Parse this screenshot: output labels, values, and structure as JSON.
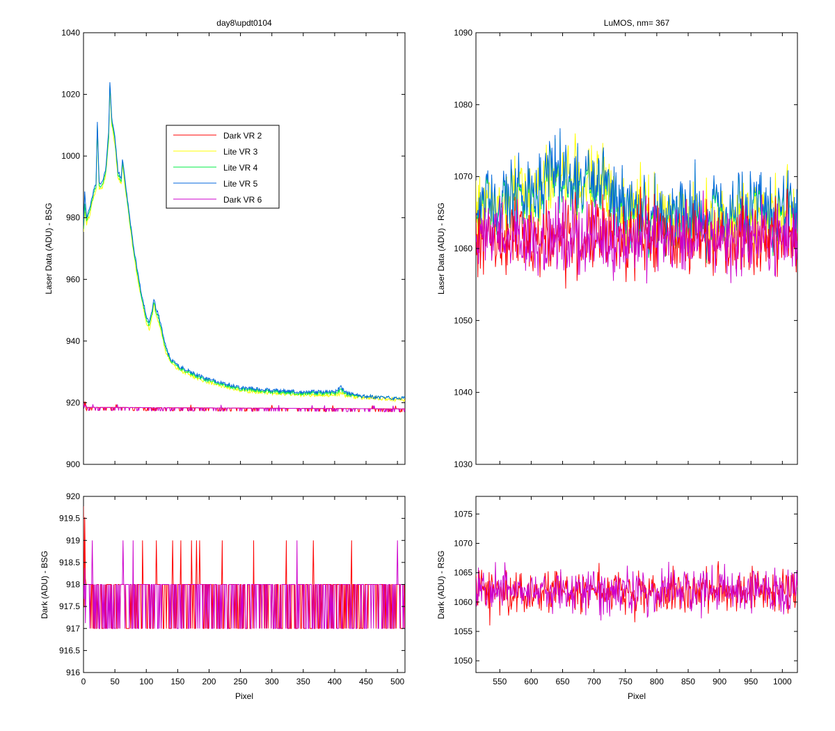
{
  "chart_data": [
    {
      "id": "top_left",
      "type": "line",
      "title": "day8\\updt0104",
      "xlabel": "",
      "ylabel": "Laser Data (ADU) - BSG",
      "xlim": [
        0,
        512
      ],
      "ylim": [
        900,
        1040
      ],
      "xticks": [
        0,
        50,
        100,
        150,
        200,
        250,
        300,
        350,
        400,
        450,
        500
      ],
      "xticklabels_shown": false,
      "yticks": [
        900,
        920,
        940,
        960,
        980,
        1000,
        1020,
        1040
      ],
      "legend": {
        "placement": "upper-middle",
        "entries": [
          "Dark VR 2",
          "Lite VR 3",
          "Lite VR 4",
          "Lite VR 5",
          "Dark VR 6"
        ]
      },
      "series": [
        {
          "name": "Dark VR 2",
          "color": "#ff0000",
          "mode": "dark",
          "x": [
            0,
            5,
            512
          ],
          "values": [
            920.5,
            918.5,
            918
          ]
        },
        {
          "name": "Lite VR 3",
          "color": "#ffff00",
          "mode": "lite",
          "x": [
            0,
            2,
            5,
            10,
            15,
            20,
            22,
            25,
            30,
            35,
            40,
            42,
            45,
            50,
            55,
            60,
            62,
            65,
            70,
            80,
            90,
            100,
            105,
            110,
            112,
            115,
            120,
            125,
            130,
            135,
            140,
            145,
            150,
            160,
            180,
            200,
            220,
            250,
            300,
            350,
            400,
            410,
            412,
            420,
            450,
            500,
            512
          ],
          "values": [
            975,
            982,
            978,
            981,
            986,
            989,
            1009,
            989,
            990,
            993,
            1005,
            1022,
            1010,
            1004,
            993,
            991,
            997,
            992,
            984,
            968,
            956,
            946,
            944,
            949,
            952,
            949,
            946,
            942,
            937,
            935,
            933,
            932,
            931,
            930,
            928,
            926.5,
            925.5,
            924,
            923,
            922.5,
            922.5,
            923,
            923,
            922,
            921.5,
            921,
            921
          ]
        },
        {
          "name": "Lite VR 4",
          "color": "#00ee44",
          "mode": "lite",
          "x": [
            0,
            2,
            5,
            10,
            15,
            20,
            22,
            25,
            30,
            35,
            40,
            42,
            45,
            50,
            55,
            60,
            62,
            65,
            70,
            80,
            90,
            100,
            105,
            110,
            112,
            115,
            120,
            125,
            130,
            135,
            140,
            145,
            150,
            160,
            180,
            200,
            220,
            250,
            300,
            350,
            400,
            410,
            412,
            420,
            450,
            500,
            512
          ],
          "values": [
            976,
            984,
            979,
            982,
            987,
            990,
            1010,
            990,
            991,
            994,
            1006,
            1023,
            1011,
            1005,
            994,
            992,
            998,
            993,
            985,
            969,
            957,
            947,
            945,
            950,
            953,
            950,
            947,
            943,
            938,
            935.5,
            933.5,
            932.5,
            931.5,
            930.5,
            928.5,
            927,
            926,
            924.5,
            923.5,
            923,
            923,
            924,
            924,
            922.5,
            922,
            921.5,
            921.5
          ]
        },
        {
          "name": "Lite VR 5",
          "color": "#0066dd",
          "mode": "lite",
          "x": [
            0,
            2,
            5,
            10,
            15,
            20,
            22,
            25,
            30,
            35,
            40,
            42,
            45,
            50,
            55,
            60,
            62,
            65,
            70,
            80,
            90,
            100,
            105,
            110,
            112,
            115,
            120,
            125,
            130,
            135,
            140,
            145,
            150,
            160,
            180,
            200,
            220,
            250,
            300,
            350,
            400,
            410,
            412,
            420,
            450,
            500,
            512
          ],
          "values": [
            977,
            988,
            980,
            983,
            988,
            991,
            1011,
            991,
            992,
            995,
            1008,
            1024,
            1012,
            1006,
            995,
            993,
            999,
            994,
            986,
            970,
            958,
            948,
            946,
            951,
            954,
            951,
            948,
            944,
            939,
            936,
            934,
            933,
            932,
            931,
            929,
            927.5,
            926.5,
            925,
            924,
            923.5,
            923.5,
            925,
            924.5,
            923,
            922,
            921.5,
            921.5
          ]
        },
        {
          "name": "Dark VR 6",
          "color": "#cc00cc",
          "mode": "dark",
          "x": [
            0,
            5,
            512
          ],
          "values": [
            920,
            918.5,
            918
          ]
        }
      ]
    },
    {
      "id": "top_right",
      "type": "line",
      "title": "LuMOS, nm= 367",
      "xlabel": "",
      "ylabel": "Laser Data (ADU) - RSG",
      "xlim": [
        512,
        1024
      ],
      "ylim": [
        1030,
        1090
      ],
      "xticks": [
        550,
        600,
        650,
        700,
        750,
        800,
        850,
        900,
        950,
        1000
      ],
      "xticklabels_shown": false,
      "yticks": [
        1030,
        1040,
        1050,
        1060,
        1070,
        1080,
        1090
      ],
      "series": [
        {
          "name": "Lite VR 3",
          "color": "#ffff00",
          "mode": "noise",
          "x": [
            512,
            550,
            600,
            640,
            680,
            720,
            740,
            800,
            900,
            1024
          ],
          "values": [
            1066,
            1066.5,
            1068,
            1070,
            1069.5,
            1068.5,
            1065.5,
            1064.5,
            1064.5,
            1065
          ]
        },
        {
          "name": "Lite VR 4",
          "color": "#00ee44",
          "mode": "noise",
          "x": [
            512,
            550,
            600,
            640,
            680,
            720,
            740,
            800,
            900,
            1024
          ],
          "values": [
            1066,
            1066.5,
            1068,
            1070,
            1069.5,
            1068.5,
            1065.5,
            1064.5,
            1064.5,
            1065
          ]
        },
        {
          "name": "Lite VR 5",
          "color": "#0066dd",
          "mode": "noise",
          "x": [
            512,
            550,
            600,
            640,
            680,
            720,
            740,
            800,
            900,
            1024
          ],
          "values": [
            1066.5,
            1067,
            1068.5,
            1070.5,
            1070,
            1069,
            1066,
            1065,
            1065,
            1065.5
          ]
        },
        {
          "name": "Dark VR 2",
          "color": "#ff0000",
          "mode": "noise",
          "x": [
            512,
            1024
          ],
          "values": [
            1061.5,
            1061.5
          ]
        },
        {
          "name": "Dark VR 6",
          "color": "#cc00cc",
          "mode": "noise",
          "x": [
            512,
            1024
          ],
          "values": [
            1061.5,
            1061.5
          ]
        }
      ]
    },
    {
      "id": "bottom_left",
      "type": "line",
      "title": "",
      "xlabel": "Pixel",
      "ylabel": "Dark (ADU) - BSG",
      "xlim": [
        0,
        512
      ],
      "ylim": [
        916,
        920
      ],
      "xticks": [
        0,
        50,
        100,
        150,
        200,
        250,
        300,
        350,
        400,
        450,
        500
      ],
      "xticklabels_shown": true,
      "yticks": [
        916,
        916.5,
        917,
        917.5,
        918,
        918.5,
        919,
        919.5,
        920
      ],
      "series": [
        {
          "name": "Dark VR 2",
          "color": "#ff0000",
          "mode": "digital",
          "baseline": 918,
          "low": 917,
          "high": 919,
          "x": [
            0,
            512
          ],
          "values": [
            918,
            918
          ]
        },
        {
          "name": "Dark VR 6",
          "color": "#cc00cc",
          "mode": "digital",
          "baseline": 918,
          "low": 917,
          "high": 919,
          "x": [
            0,
            512
          ],
          "values": [
            918,
            918
          ]
        }
      ]
    },
    {
      "id": "bottom_right",
      "type": "line",
      "title": "",
      "xlabel": "Pixel",
      "ylabel": "Dark (ADU) - RSG",
      "xlim": [
        512,
        1024
      ],
      "ylim": [
        1048,
        1078
      ],
      "xticks": [
        550,
        600,
        650,
        700,
        750,
        800,
        850,
        900,
        950,
        1000
      ],
      "xticklabels_shown": true,
      "yticks": [
        1050,
        1055,
        1060,
        1065,
        1070,
        1075
      ],
      "series": [
        {
          "name": "Dark VR 2",
          "color": "#ff0000",
          "mode": "noise",
          "x": [
            512,
            1024
          ],
          "values": [
            1062,
            1062
          ]
        },
        {
          "name": "Dark VR 6",
          "color": "#cc00cc",
          "mode": "noise",
          "x": [
            512,
            1024
          ],
          "values": [
            1062,
            1062
          ]
        }
      ]
    }
  ]
}
